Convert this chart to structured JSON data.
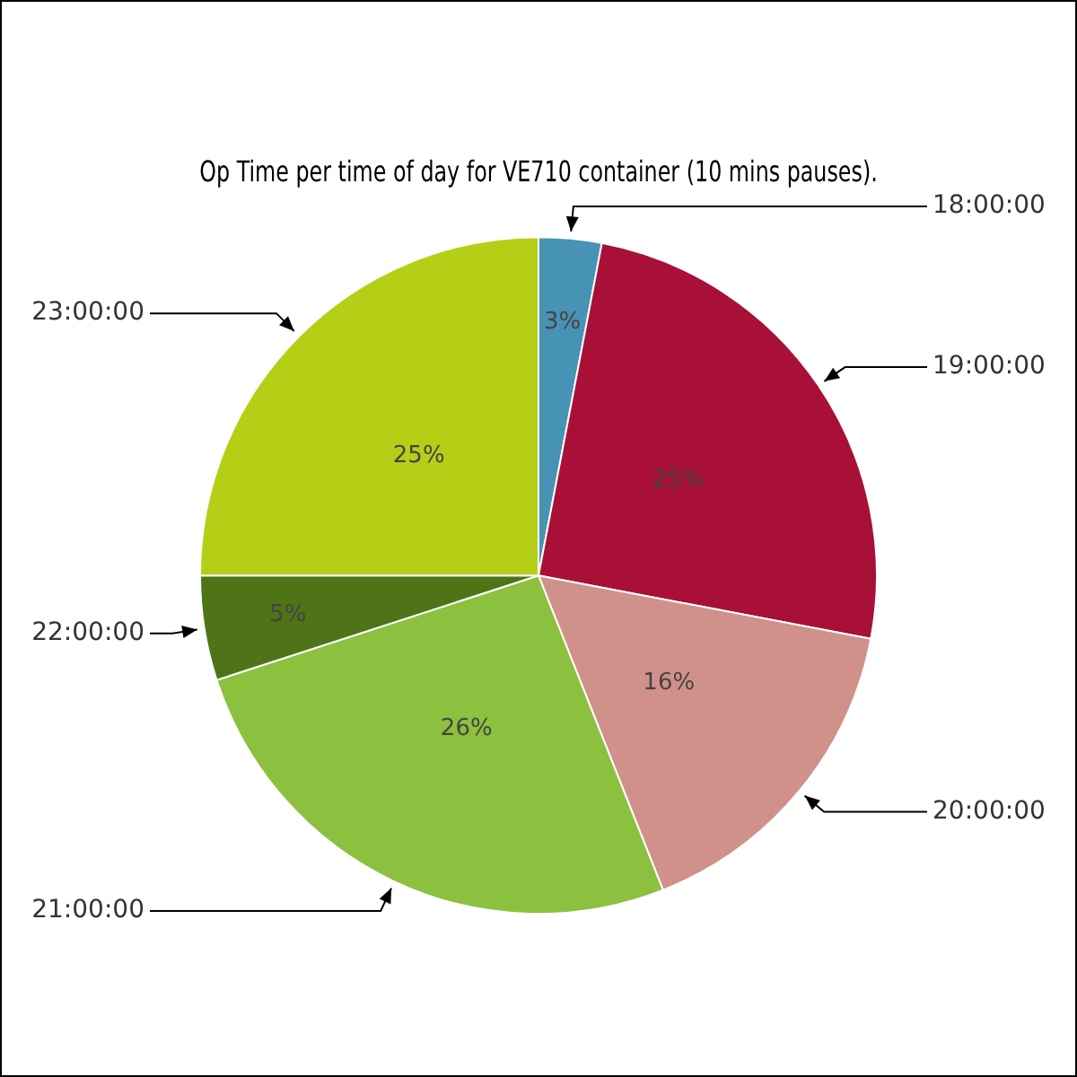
{
  "chart_data": {
    "type": "pie",
    "title": "Op Time per time of day for VE710 container (10 mins pauses).",
    "categories": [
      "18:00:00",
      "19:00:00",
      "20:00:00",
      "21:00:00",
      "22:00:00",
      "23:00:00"
    ],
    "values": [
      3,
      25,
      16,
      26,
      5,
      25
    ],
    "value_labels": [
      "3%",
      "25%",
      "16%",
      "26%",
      "5%",
      "25%"
    ],
    "colors": [
      "#4793b5",
      "#a81038",
      "#d0918a",
      "#8cc03f",
      "#4e7417",
      "#b5cf17"
    ],
    "legend": false
  }
}
